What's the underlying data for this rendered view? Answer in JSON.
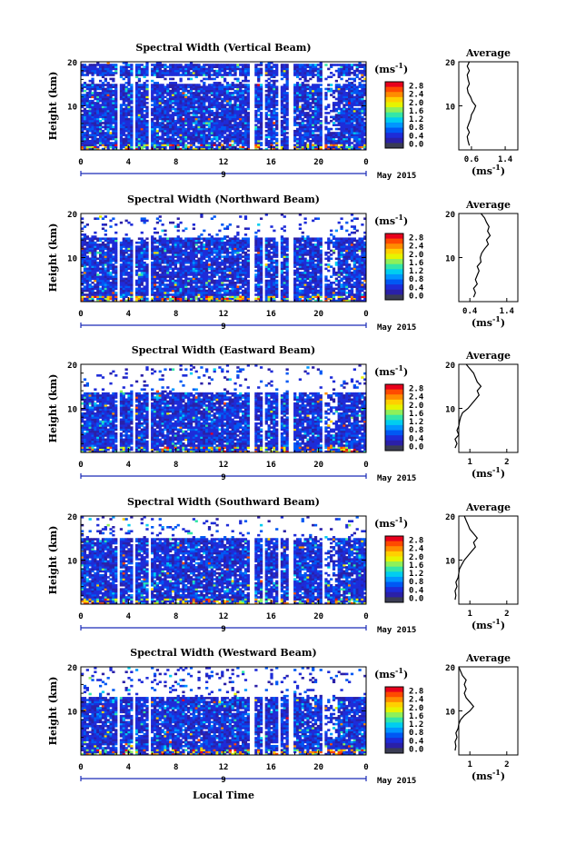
{
  "colorbar": {
    "unit": "(ms",
    "unit_exp": "-1",
    "unit_close": ")",
    "ticks": [
      "2.8",
      "2.4",
      "2.0",
      "1.6",
      "1.2",
      "0.8",
      "0.4",
      "0.0"
    ],
    "colors": [
      "#e8001c",
      "#ff4a00",
      "#ff8c00",
      "#ffd000",
      "#e6f400",
      "#8ef05a",
      "#34e6a8",
      "#00cdf0",
      "#0096ff",
      "#0058f4",
      "#1e2cd8",
      "#2a20a8",
      "#3a3c54"
    ]
  },
  "average": {
    "title": "Average",
    "unit": "(ms",
    "unit_exp": "-1",
    "unit_close": ")"
  },
  "date_label": "May 2015",
  "xlabel": "Local Time",
  "ylabel": "Height (km)",
  "chart_data": [
    {
      "type": "heatmap",
      "title": "Spectral Width (Vertical Beam)",
      "ylabel": "Height (km)",
      "yticks": [
        "20",
        "10"
      ],
      "ylim": [
        0,
        20
      ],
      "xticks": [
        "0",
        "4",
        "8",
        "12",
        "16",
        "20",
        "0"
      ],
      "xlim": [
        0,
        24
      ],
      "day_marker": "9",
      "date_label": "May 2015",
      "colorbar_ticks": [
        "2.8",
        "2.4",
        "2.0",
        "1.6",
        "1.2",
        "0.8",
        "0.4",
        "0.0"
      ],
      "average": {
        "title": "Average",
        "xticks": [
          "0.6",
          "1.4"
        ],
        "yticks": [
          "20",
          "10"
        ],
        "profile": [
          {
            "h": 1.0,
            "v": 0.55
          },
          {
            "h": 2.0,
            "v": 0.52
          },
          {
            "h": 3.0,
            "v": 0.5
          },
          {
            "h": 4.0,
            "v": 0.55
          },
          {
            "h": 5.0,
            "v": 0.5
          },
          {
            "h": 6.0,
            "v": 0.54
          },
          {
            "h": 7.0,
            "v": 0.58
          },
          {
            "h": 8.0,
            "v": 0.6
          },
          {
            "h": 9.0,
            "v": 0.66
          },
          {
            "h": 10.0,
            "v": 0.7
          },
          {
            "h": 11.0,
            "v": 0.62
          },
          {
            "h": 12.0,
            "v": 0.58
          },
          {
            "h": 13.0,
            "v": 0.52
          },
          {
            "h": 14.0,
            "v": 0.5
          },
          {
            "h": 15.0,
            "v": 0.55
          },
          {
            "h": 16.0,
            "v": 0.52
          },
          {
            "h": 17.0,
            "v": 0.5
          },
          {
            "h": 18.0,
            "v": 0.55
          },
          {
            "h": 19.0,
            "v": 0.5
          },
          {
            "h": 20.0,
            "v": 0.55
          }
        ]
      }
    },
    {
      "type": "heatmap",
      "title": "Spectral Width (Northward Beam)",
      "ylabel": "Height (km)",
      "yticks": [
        "20",
        "10"
      ],
      "ylim": [
        0,
        20
      ],
      "xticks": [
        "0",
        "4",
        "8",
        "12",
        "16",
        "20",
        "0"
      ],
      "xlim": [
        0,
        24
      ],
      "day_marker": "9",
      "date_label": "May 2015",
      "colorbar_ticks": [
        "2.8",
        "2.4",
        "2.0",
        "1.6",
        "1.2",
        "0.8",
        "0.4",
        "0.0"
      ],
      "average": {
        "title": "Average",
        "xticks": [
          "0.4",
          "1.4"
        ],
        "yticks": [
          "20",
          "10"
        ],
        "profile": [
          {
            "h": 1.0,
            "v": 0.5
          },
          {
            "h": 2.0,
            "v": 0.55
          },
          {
            "h": 3.0,
            "v": 0.5
          },
          {
            "h": 4.0,
            "v": 0.6
          },
          {
            "h": 5.0,
            "v": 0.55
          },
          {
            "h": 6.0,
            "v": 0.6
          },
          {
            "h": 7.0,
            "v": 0.65
          },
          {
            "h": 8.0,
            "v": 0.6
          },
          {
            "h": 9.0,
            "v": 0.7
          },
          {
            "h": 10.0,
            "v": 0.68
          },
          {
            "h": 11.0,
            "v": 0.72
          },
          {
            "h": 12.0,
            "v": 0.8
          },
          {
            "h": 13.0,
            "v": 0.9
          },
          {
            "h": 14.0,
            "v": 0.85
          },
          {
            "h": 15.0,
            "v": 0.95
          },
          {
            "h": 16.0,
            "v": 0.88
          },
          {
            "h": 17.0,
            "v": 0.92
          },
          {
            "h": 18.0,
            "v": 0.85
          },
          {
            "h": 19.0,
            "v": 0.8
          },
          {
            "h": 20.0,
            "v": 0.7
          }
        ]
      }
    },
    {
      "type": "heatmap",
      "title": "Spectral Width (Eastward Beam)",
      "ylabel": "Height (km)",
      "yticks": [
        "20",
        "10"
      ],
      "ylim": [
        0,
        20
      ],
      "xticks": [
        "0",
        "4",
        "8",
        "12",
        "16",
        "20",
        "0"
      ],
      "xlim": [
        0,
        24
      ],
      "day_marker": "9",
      "date_label": "May 2015",
      "colorbar_ticks": [
        "2.8",
        "2.4",
        "2.0",
        "1.6",
        "1.2",
        "0.8",
        "0.4",
        "0.0"
      ],
      "average": {
        "title": "Average",
        "xticks": [
          "1",
          "2"
        ],
        "yticks": [
          "20",
          "10"
        ],
        "profile": [
          {
            "h": 1.0,
            "v": 0.6
          },
          {
            "h": 2.0,
            "v": 0.65
          },
          {
            "h": 3.0,
            "v": 0.6
          },
          {
            "h": 4.0,
            "v": 0.7
          },
          {
            "h": 5.0,
            "v": 0.65
          },
          {
            "h": 6.0,
            "v": 0.7
          },
          {
            "h": 7.0,
            "v": 0.72
          },
          {
            "h": 8.0,
            "v": 0.75
          },
          {
            "h": 9.0,
            "v": 0.8
          },
          {
            "h": 10.0,
            "v": 0.95
          },
          {
            "h": 11.0,
            "v": 1.05
          },
          {
            "h": 12.0,
            "v": 1.15
          },
          {
            "h": 13.0,
            "v": 1.25
          },
          {
            "h": 14.0,
            "v": 1.2
          },
          {
            "h": 15.0,
            "v": 1.3
          },
          {
            "h": 16.0,
            "v": 1.2
          },
          {
            "h": 17.0,
            "v": 1.15
          },
          {
            "h": 18.0,
            "v": 1.1
          },
          {
            "h": 19.0,
            "v": 1.0
          },
          {
            "h": 20.0,
            "v": 0.9
          }
        ]
      }
    },
    {
      "type": "heatmap",
      "title": "Spectral Width (Southward Beam)",
      "ylabel": "Height (km)",
      "yticks": [
        "20",
        "10"
      ],
      "ylim": [
        0,
        20
      ],
      "xticks": [
        "0",
        "4",
        "8",
        "12",
        "16",
        "20",
        "0"
      ],
      "xlim": [
        0,
        24
      ],
      "day_marker": "9",
      "date_label": "May 2015",
      "colorbar_ticks": [
        "2.8",
        "2.4",
        "2.0",
        "1.6",
        "1.2",
        "0.8",
        "0.4",
        "0.0"
      ],
      "average": {
        "title": "Average",
        "xticks": [
          "1",
          "2"
        ],
        "yticks": [
          "20",
          "10"
        ],
        "profile": [
          {
            "h": 1.0,
            "v": 0.6
          },
          {
            "h": 2.0,
            "v": 0.62
          },
          {
            "h": 3.0,
            "v": 0.6
          },
          {
            "h": 4.0,
            "v": 0.65
          },
          {
            "h": 5.0,
            "v": 0.62
          },
          {
            "h": 6.0,
            "v": 0.68
          },
          {
            "h": 7.0,
            "v": 0.7
          },
          {
            "h": 8.0,
            "v": 0.72
          },
          {
            "h": 9.0,
            "v": 0.78
          },
          {
            "h": 10.0,
            "v": 0.85
          },
          {
            "h": 11.0,
            "v": 0.95
          },
          {
            "h": 12.0,
            "v": 1.05
          },
          {
            "h": 13.0,
            "v": 1.15
          },
          {
            "h": 14.0,
            "v": 1.1
          },
          {
            "h": 15.0,
            "v": 1.2
          },
          {
            "h": 16.0,
            "v": 1.1
          },
          {
            "h": 17.0,
            "v": 1.0
          },
          {
            "h": 18.0,
            "v": 0.95
          },
          {
            "h": 19.0,
            "v": 0.9
          },
          {
            "h": 20.0,
            "v": 0.85
          }
        ]
      }
    },
    {
      "type": "heatmap",
      "title": "Spectral Width (Westward Beam)",
      "ylabel": "Height (km)",
      "yticks": [
        "20",
        "10"
      ],
      "ylim": [
        0,
        20
      ],
      "xticks": [
        "0",
        "4",
        "8",
        "12",
        "16",
        "20",
        "0"
      ],
      "xlim": [
        0,
        24
      ],
      "day_marker": "9",
      "date_label": "May 2015",
      "colorbar_ticks": [
        "2.8",
        "2.4",
        "2.0",
        "1.6",
        "1.2",
        "0.8",
        "0.4",
        "0.0"
      ],
      "average": {
        "title": "Average",
        "xticks": [
          "1",
          "2"
        ],
        "yticks": [
          "20",
          "10"
        ],
        "profile": [
          {
            "h": 1.0,
            "v": 0.6
          },
          {
            "h": 2.0,
            "v": 0.62
          },
          {
            "h": 3.0,
            "v": 0.6
          },
          {
            "h": 4.0,
            "v": 0.65
          },
          {
            "h": 5.0,
            "v": 0.62
          },
          {
            "h": 6.0,
            "v": 0.68
          },
          {
            "h": 7.0,
            "v": 0.7
          },
          {
            "h": 8.0,
            "v": 0.75
          },
          {
            "h": 9.0,
            "v": 0.85
          },
          {
            "h": 10.0,
            "v": 1.0
          },
          {
            "h": 11.0,
            "v": 1.1
          },
          {
            "h": 12.0,
            "v": 1.0
          },
          {
            "h": 13.0,
            "v": 0.9
          },
          {
            "h": 14.0,
            "v": 0.85
          },
          {
            "h": 15.0,
            "v": 0.9
          },
          {
            "h": 16.0,
            "v": 0.85
          },
          {
            "h": 17.0,
            "v": 0.9
          },
          {
            "h": 18.0,
            "v": 0.8
          },
          {
            "h": 19.0,
            "v": 0.75
          },
          {
            "h": 20.0,
            "v": 0.7
          }
        ]
      }
    }
  ]
}
